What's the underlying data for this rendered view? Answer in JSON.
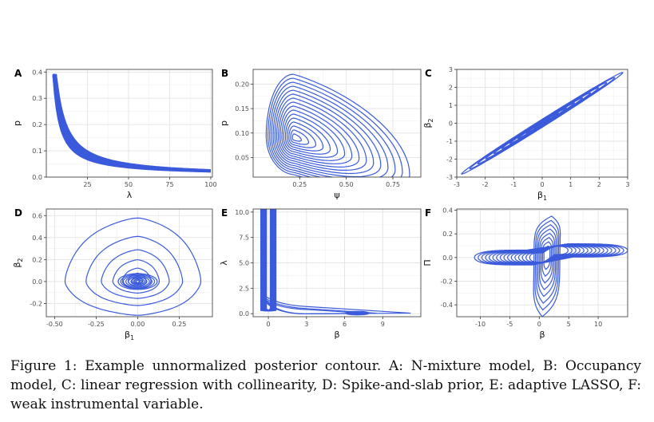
{
  "figure": {
    "caption": "Figure 1: Example unnormalized posterior contour. A: N-mixture model, B: Occupancy model, C: linear regression with collinearity, D: Spike-and-slab prior, E: adaptive LASSO, F: weak instrumental variable.",
    "contour_color": "#3b5bdb"
  },
  "chart_data": [
    {
      "type": "contour",
      "panel": "A",
      "xlabel": "λ",
      "ylabel": "p",
      "xlim": [
        0,
        101
      ],
      "ylim": [
        0,
        0.41
      ],
      "xticks": [
        25,
        50,
        75,
        100
      ],
      "yticks": [
        0.0,
        0.1,
        0.2,
        0.3,
        0.4
      ],
      "xtick_labels": [
        "25",
        "50",
        "75",
        "100"
      ],
      "ytick_labels": [
        "0.0",
        "0.1",
        "0.2",
        "0.3",
        "0.4"
      ],
      "description": "hyperbolic ridge p ≈ c/λ from λ≈5 to 100"
    },
    {
      "type": "contour",
      "panel": "B",
      "xlabel": "ψ",
      "ylabel": "p",
      "xlim": [
        0.0,
        0.9
      ],
      "ylim": [
        0.01,
        0.23
      ],
      "xticks": [
        0.25,
        0.5,
        0.75
      ],
      "yticks": [
        0.05,
        0.1,
        0.15,
        0.2
      ],
      "xtick_labels": [
        "0.25",
        "0.50",
        "0.75"
      ],
      "ytick_labels": [
        "0.05",
        "0.10",
        "0.15",
        "0.20"
      ],
      "mode": [
        0.22,
        0.09
      ]
    },
    {
      "type": "contour",
      "panel": "C",
      "xlabel": "β1",
      "ylabel": "β2",
      "xlim": [
        -3,
        3
      ],
      "ylim": [
        -3,
        3
      ],
      "xticks": [
        -3,
        -2,
        -1,
        0,
        1,
        2,
        3
      ],
      "yticks": [
        -3,
        -2,
        -1,
        0,
        1,
        2,
        3
      ],
      "xtick_labels": [
        "-3",
        "-2",
        "-1",
        "0",
        "1",
        "2",
        "3"
      ],
      "ytick_labels": [
        "-3",
        "-2",
        "-1",
        "0",
        "1",
        "2",
        "3"
      ],
      "description": "narrow elliptical ridge along β2 = β1"
    },
    {
      "type": "contour",
      "panel": "D",
      "xlabel": "β1",
      "ylabel": "β2",
      "xlim": [
        -0.55,
        0.45
      ],
      "ylim": [
        -0.32,
        0.66
      ],
      "xticks": [
        -0.5,
        -0.25,
        0.0,
        0.25
      ],
      "yticks": [
        -0.2,
        0.0,
        0.2,
        0.4,
        0.6
      ],
      "xtick_labels": [
        "-0.50",
        "-0.25",
        "0.00",
        "0.25"
      ],
      "ytick_labels": [
        "-0.2",
        "0.0",
        "0.2",
        "0.4",
        "0.6"
      ],
      "mode": [
        0.0,
        0.0
      ]
    },
    {
      "type": "contour",
      "panel": "E",
      "xlabel": "β",
      "ylabel": "λ",
      "xlim": [
        -1.2,
        12
      ],
      "ylim": [
        -0.3,
        10.3
      ],
      "xticks": [
        0,
        3,
        6,
        9
      ],
      "yticks": [
        0.0,
        2.5,
        5.0,
        7.5,
        10.0
      ],
      "xtick_labels": [
        "0",
        "3",
        "6",
        "9"
      ],
      "ytick_labels": [
        "0.0",
        "2.5",
        "5.0",
        "7.5",
        "10.0"
      ],
      "modes": [
        [
          0.0,
          8.0
        ],
        [
          7.0,
          0.2
        ]
      ]
    },
    {
      "type": "contour",
      "panel": "F",
      "xlabel": "β",
      "ylabel": "Π",
      "xlim": [
        -14,
        15
      ],
      "ylim": [
        -0.5,
        0.41
      ],
      "xticks": [
        -10,
        -5,
        0,
        5,
        10
      ],
      "yticks": [
        -0.4,
        -0.2,
        0.0,
        0.2,
        0.4
      ],
      "xtick_labels": [
        "-10",
        "-5",
        "0",
        "5",
        "10"
      ],
      "ytick_labels": [
        "-0.4",
        "-0.2",
        "0.0",
        "0.2",
        "0.4"
      ],
      "mode": [
        2.0,
        0.05
      ]
    }
  ]
}
